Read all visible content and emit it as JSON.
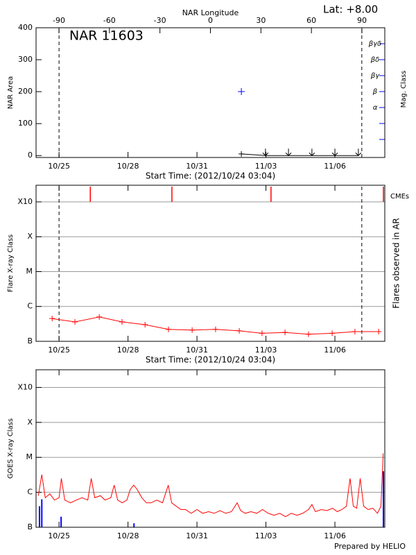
{
  "chart_data": [
    {
      "type": "line",
      "annotations": [
        "NAR 11603",
        "Lat:  +8.00"
      ],
      "x2_label": "NAR Longitude",
      "xlabel": "Start Time: (2012/10/24 03:04)",
      "ylabel": "NAR Area",
      "y2label": "Mag. Class",
      "xlim": [
        0,
        15.17
      ],
      "xticks": [
        {
          "value": 1,
          "label": "10/25"
        },
        {
          "value": 4,
          "label": "10/28"
        },
        {
          "value": 7,
          "label": "10/31"
        },
        {
          "value": 10,
          "label": "11/03"
        },
        {
          "value": 13,
          "label": "11/06"
        }
      ],
      "x2lim": [
        -103.6,
        103.6
      ],
      "x2ticks": [
        -90,
        -60,
        -30,
        0,
        30,
        60,
        90
      ],
      "ylim": [
        -6,
        400
      ],
      "yticks": [
        0,
        100,
        200,
        300,
        400
      ],
      "y2lim": [
        -0.13,
        8
      ],
      "y2ticks": [
        {
          "value": 3,
          "label": "α"
        },
        {
          "value": 4,
          "label": "β"
        },
        {
          "value": 5,
          "label": "βγ"
        },
        {
          "value": 6,
          "label": "βδ"
        },
        {
          "value": 7,
          "label": "βγδ"
        }
      ],
      "y2minor": [
        1,
        2
      ],
      "dashed_lines": [
        1.0,
        14.17
      ],
      "series": [
        {
          "color": "#000000",
          "x": [
            8.93,
            9.98,
            10.98,
            12.0,
            13.0,
            14.02
          ],
          "values": [
            5,
            0,
            0,
            0,
            0,
            0
          ]
        },
        {
          "color": "#0000ff",
          "axis": "y2",
          "x": [
            8.93
          ],
          "values": [
            4
          ]
        }
      ]
    },
    {
      "type": "line",
      "xlabel": "Start Time: (2012/10/24 03:04)",
      "ylabel": "Flare X-ray Class",
      "y2label": "Flares observed in AR",
      "log_y": true,
      "grid": true,
      "xlim": [
        0,
        15.17
      ],
      "xticks": [
        {
          "value": 1,
          "label": "10/25"
        },
        {
          "value": 4,
          "label": "10/28"
        },
        {
          "value": 7,
          "label": "10/31"
        },
        {
          "value": 10,
          "label": "11/03"
        },
        {
          "value": 13,
          "label": "11/06"
        }
      ],
      "ylim": [
        1e-07,
        0.003
      ],
      "yticks": [
        {
          "value": 1e-07,
          "label": "B"
        },
        {
          "value": 1e-06,
          "label": "C"
        },
        {
          "value": 1e-05,
          "label": "M"
        },
        {
          "value": 0.0001,
          "label": "X"
        },
        {
          "value": 0.001,
          "label": "X10"
        }
      ],
      "dashed_lines": [
        1.0,
        14.17
      ],
      "events": {
        "name": "CMEs",
        "color": "#ff0000",
        "x": [
          2.36,
          5.91,
          10.22,
          15.11
        ]
      },
      "series": [
        {
          "color": "#ff0000",
          "x": [
            0.7,
            1.69,
            2.75,
            3.74,
            4.74,
            5.76,
            6.79,
            7.81,
            8.84,
            9.83,
            10.83,
            11.85,
            12.88,
            13.87,
            14.9
          ],
          "values": [
            4.5e-07,
            3.6e-07,
            5e-07,
            3.6e-07,
            3e-07,
            2.2e-07,
            2.1e-07,
            2.2e-07,
            2e-07,
            1.7e-07,
            1.8e-07,
            1.6e-07,
            1.7e-07,
            1.9e-07,
            1.9e-07
          ]
        }
      ]
    },
    {
      "type": "line",
      "ylabel": "GOES X-ray Class",
      "log_y": true,
      "grid": true,
      "xlim": [
        0,
        15.17
      ],
      "xticks": [
        {
          "value": 1,
          "label": "10/25"
        },
        {
          "value": 4,
          "label": "10/28"
        },
        {
          "value": 7,
          "label": "10/31"
        },
        {
          "value": 10,
          "label": "11/03"
        },
        {
          "value": 13,
          "label": "11/06"
        }
      ],
      "ylim": [
        1e-07,
        0.0032
      ],
      "yticks": [
        {
          "value": 1e-07,
          "label": "B"
        },
        {
          "value": 1e-06,
          "label": "C"
        },
        {
          "value": 1e-05,
          "label": "M"
        },
        {
          "value": 0.0001,
          "label": "X"
        },
        {
          "value": 0.001,
          "label": "X10"
        }
      ],
      "series": [
        {
          "color": "#ff0000",
          "x": [
            0.1,
            0.25,
            0.4,
            0.6,
            0.8,
            1.0,
            1.1,
            1.25,
            1.5,
            1.75,
            2.0,
            2.25,
            2.4,
            2.55,
            2.8,
            3.0,
            3.25,
            3.4,
            3.55,
            3.75,
            3.95,
            4.1,
            4.25,
            4.4,
            4.6,
            4.8,
            5.0,
            5.25,
            5.5,
            5.75,
            5.9,
            6.1,
            6.3,
            6.5,
            6.75,
            7.0,
            7.25,
            7.5,
            7.75,
            8.0,
            8.25,
            8.5,
            8.75,
            8.9,
            9.1,
            9.35,
            9.6,
            9.85,
            10.1,
            10.35,
            10.6,
            10.85,
            11.1,
            11.35,
            11.6,
            11.85,
            12.0,
            12.15,
            12.4,
            12.65,
            12.9,
            13.1,
            13.3,
            13.5,
            13.66,
            13.8,
            13.95,
            14.1,
            14.25,
            14.45,
            14.65,
            14.85,
            15.0,
            15.1
          ],
          "values": [
            8e-07,
            3.2e-06,
            7e-07,
            9e-07,
            6e-07,
            7e-07,
            2.5e-06,
            6e-07,
            5e-07,
            6e-07,
            7e-07,
            6e-07,
            2.5e-06,
            7e-07,
            8e-07,
            6e-07,
            7e-07,
            1.6e-06,
            6e-07,
            5e-07,
            6e-07,
            1.2e-06,
            1.6e-06,
            1.2e-06,
            7e-07,
            5e-07,
            5e-07,
            6e-07,
            5e-07,
            1.6e-06,
            5e-07,
            4e-07,
            3.2e-07,
            3.2e-07,
            2.5e-07,
            3.2e-07,
            2.5e-07,
            2.8e-07,
            2.5e-07,
            3e-07,
            2.5e-07,
            2.8e-07,
            5e-07,
            3e-07,
            2.5e-07,
            2.8e-07,
            2.5e-07,
            3.2e-07,
            2.5e-07,
            2.2e-07,
            2.5e-07,
            2e-07,
            2.5e-07,
            2.2e-07,
            2.5e-07,
            3.2e-07,
            4.5e-07,
            2.8e-07,
            3.2e-07,
            3e-07,
            3.5e-07,
            2.8e-07,
            3.2e-07,
            4e-07,
            2.5e-06,
            4e-07,
            3.5e-07,
            2.5e-06,
            4e-07,
            3.2e-07,
            3.5e-07,
            2.5e-07,
            4e-07,
            1.3e-05
          ]
        }
      ],
      "bars": {
        "color": "#0000ff",
        "x": [
          0.15,
          0.25,
          1.09,
          4.26,
          15.11
        ],
        "values": [
          4e-07,
          6.3e-07,
          2e-07,
          1.3e-07,
          4e-06
        ]
      }
    }
  ],
  "footer": "Prepared by HELIO"
}
